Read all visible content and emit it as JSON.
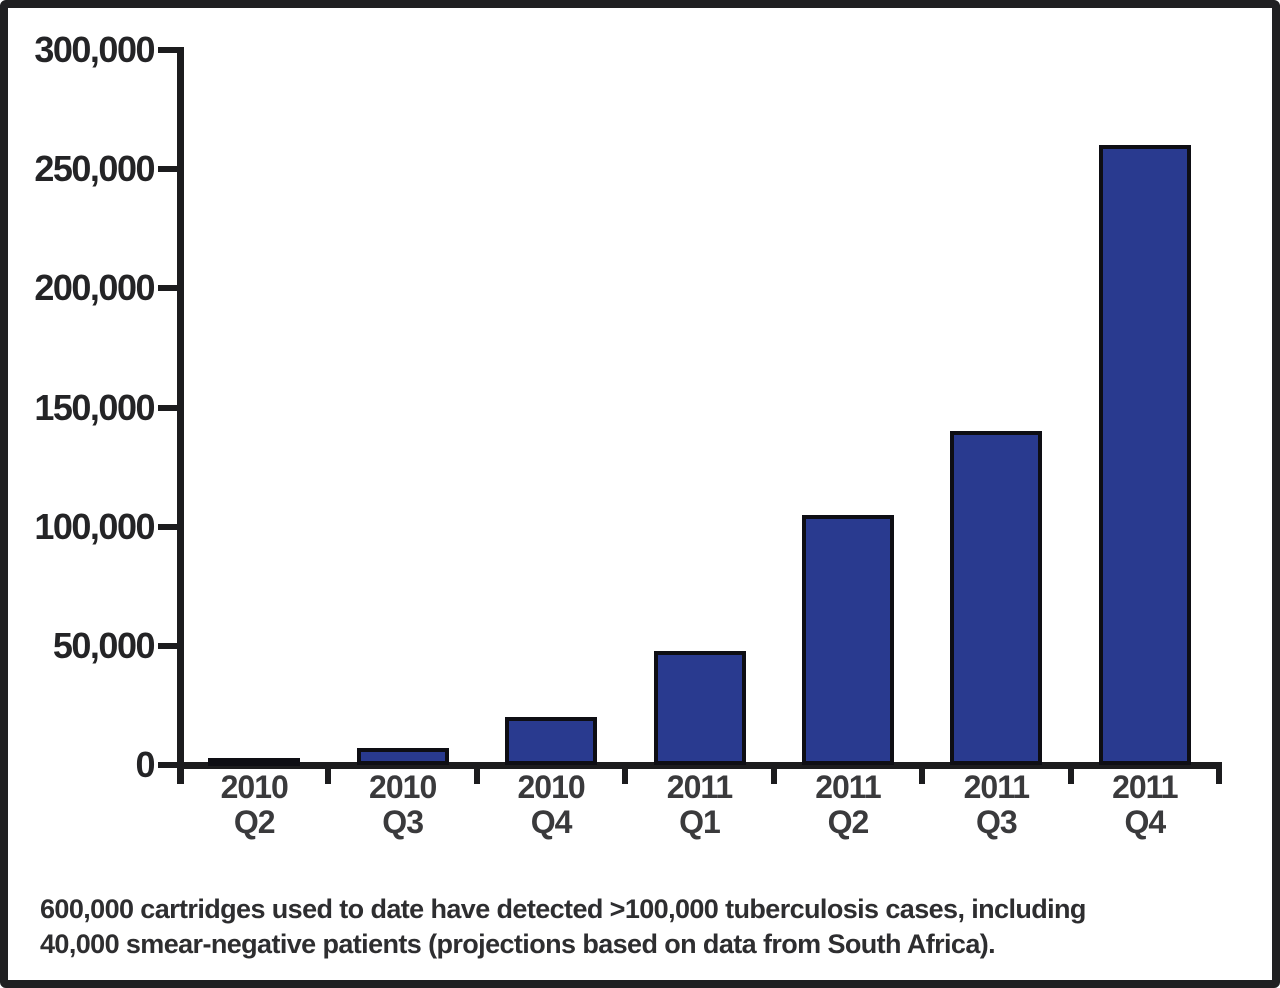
{
  "figure": {
    "background": "#FFFFFF",
    "frame_color": "#202022",
    "text_color": "#2E2E30"
  },
  "chart_data": {
    "type": "bar",
    "categories": [
      "2010 Q2",
      "2010 Q3",
      "2010 Q4",
      "2011 Q1",
      "2011 Q2",
      "2011 Q3",
      "2011 Q4"
    ],
    "values": [
      3000,
      7000,
      20000,
      48000,
      105000,
      140000,
      260000
    ],
    "ylim": [
      0,
      300000
    ],
    "ytick_interval": 50000,
    "ytick_labels": [
      "0",
      "50,000",
      "100,000",
      "150,000",
      "200,000",
      "250,000",
      "300,000"
    ],
    "grid": false,
    "legend": "none",
    "bar_color": "#293A8F",
    "bar_border_color": "#0E0E14",
    "axis_color": "#1C1C1E",
    "xlabel": "",
    "ylabel": ""
  },
  "caption": {
    "lines": [
      "600,000 cartridges used to date have detected >100,000 tuberculosis cases, including",
      "40,000 smear-negative patients (projections based on data from South Africa)."
    ]
  }
}
